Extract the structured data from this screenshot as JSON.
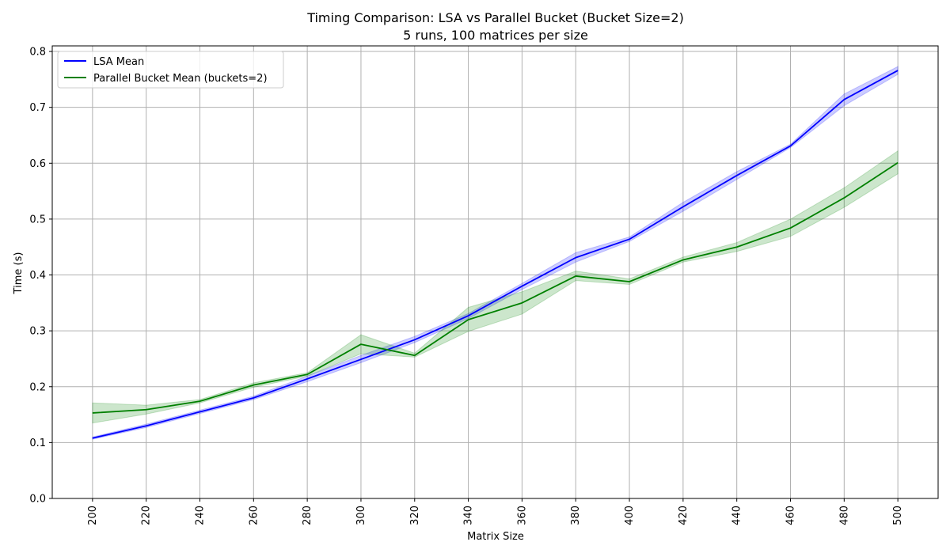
{
  "chart_data": {
    "type": "line",
    "title": "Timing Comparison: LSA vs Parallel Bucket (Bucket Size=2)",
    "subtitle": "5 runs, 100 matrices per size",
    "xlabel": "Matrix Size",
    "ylabel": "Time (s)",
    "x": [
      200,
      220,
      240,
      260,
      280,
      300,
      320,
      340,
      360,
      380,
      400,
      420,
      440,
      460,
      480,
      500
    ],
    "xlim": [
      185,
      515
    ],
    "ylim": [
      0.0,
      0.81
    ],
    "yticks": [
      0.0,
      0.1,
      0.2,
      0.3,
      0.4,
      0.5,
      0.6,
      0.7,
      0.8
    ],
    "ytick_labels": [
      "0.0",
      "0.1",
      "0.2",
      "0.3",
      "0.4",
      "0.5",
      "0.6",
      "0.7",
      "0.8"
    ],
    "xtick_labels": [
      "200",
      "220",
      "240",
      "260",
      "280",
      "300",
      "320",
      "340",
      "360",
      "380",
      "400",
      "420",
      "440",
      "460",
      "480",
      "500"
    ],
    "grid": true,
    "legend_position": "top-left",
    "series": [
      {
        "name": "LSA Mean",
        "color": "#0000ff",
        "values": [
          0.108,
          0.13,
          0.155,
          0.18,
          0.214,
          0.249,
          0.284,
          0.327,
          0.38,
          0.431,
          0.464,
          0.522,
          0.578,
          0.631,
          0.714,
          0.766
        ],
        "band_low": [
          0.106,
          0.127,
          0.152,
          0.177,
          0.209,
          0.243,
          0.279,
          0.322,
          0.374,
          0.423,
          0.46,
          0.514,
          0.571,
          0.628,
          0.703,
          0.759
        ],
        "band_high": [
          0.11,
          0.133,
          0.158,
          0.183,
          0.219,
          0.256,
          0.29,
          0.331,
          0.385,
          0.44,
          0.468,
          0.53,
          0.585,
          0.634,
          0.724,
          0.773
        ]
      },
      {
        "name": "Parallel Bucket Mean (buckets=2)",
        "color": "#008000",
        "values": [
          0.153,
          0.159,
          0.174,
          0.203,
          0.222,
          0.276,
          0.256,
          0.32,
          0.35,
          0.398,
          0.388,
          0.427,
          0.45,
          0.484,
          0.538,
          0.601
        ],
        "band_low": [
          0.135,
          0.151,
          0.171,
          0.199,
          0.219,
          0.259,
          0.253,
          0.299,
          0.33,
          0.39,
          0.383,
          0.423,
          0.442,
          0.469,
          0.521,
          0.581
        ],
        "band_high": [
          0.171,
          0.167,
          0.177,
          0.207,
          0.225,
          0.293,
          0.26,
          0.342,
          0.37,
          0.407,
          0.393,
          0.432,
          0.458,
          0.5,
          0.556,
          0.622
        ]
      }
    ]
  }
}
